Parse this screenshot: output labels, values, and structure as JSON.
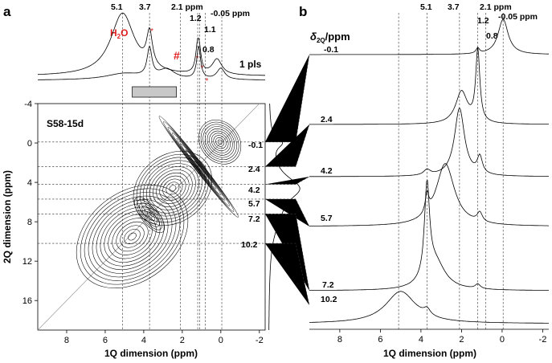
{
  "chart_data": [
    {
      "panel": "a",
      "type": "contour",
      "sample": "S58-15d",
      "xlabel": "1Q dimension (ppm)",
      "ylabel": "2Q dimension (ppm)",
      "xlim": [
        9.5,
        -2.3
      ],
      "ylim": [
        -4,
        19
      ],
      "xticks": [
        8,
        6,
        4,
        2,
        0,
        -2
      ],
      "yticks": [
        -4,
        0,
        4,
        8,
        12,
        16
      ],
      "peak_labels": [
        "5.1",
        "3.7",
        "2.1 ppm",
        "1.2",
        "1.1",
        "0.8",
        "-0.05 ppm"
      ],
      "peak_positions_ppm": [
        5.1,
        3.7,
        2.1,
        1.2,
        1.1,
        0.8,
        -0.05
      ],
      "projection_label": "1 pls",
      "water_label": "H2O",
      "hash_label": "#",
      "star_markers_ppm": [
        3.7,
        1.35,
        1.1,
        0.85
      ],
      "slice_labels": [
        "-0.1",
        "2.4",
        "4.2",
        "5.7",
        "7.2",
        "10.2"
      ],
      "slice_2q_ppm": [
        -0.1,
        2.4,
        4.2,
        5.7,
        7.2,
        10.2
      ],
      "diagonal_slope": 2,
      "box_range_ppm": [
        4.6,
        2.3
      ]
    },
    {
      "panel": "b",
      "type": "line",
      "xlabel": "1Q dimension (ppm)",
      "xlim": [
        9.5,
        -2.3
      ],
      "xticks": [
        8,
        6,
        4,
        2,
        0,
        -2
      ],
      "axis_title": "δ2Q/ppm",
      "peak_labels": [
        "5.1",
        "3.7",
        "2.1 ppm",
        "1.2",
        "0.8",
        "-0.05 ppm"
      ],
      "peak_positions_ppm": [
        5.1,
        3.7,
        2.1,
        1.2,
        0.8,
        -0.05
      ],
      "series": [
        {
          "name": "-0.1",
          "peaks": [
            {
              "x": -0.05,
              "h": 1.0,
              "w": 0.3
            },
            {
              "x": 1.2,
              "h": 0.15,
              "w": 0.1
            }
          ]
        },
        {
          "name": "2.4",
          "peaks": [
            {
              "x": 1.2,
              "h": 1.0,
              "w": 0.12
            },
            {
              "x": 2.0,
              "h": 0.45,
              "w": 0.35
            }
          ]
        },
        {
          "name": "4.2",
          "peaks": [
            {
              "x": 2.1,
              "h": 1.0,
              "w": 0.3
            },
            {
              "x": 1.1,
              "h": 0.25,
              "w": 0.15
            },
            {
              "x": 3.7,
              "h": 0.08,
              "w": 0.2
            }
          ]
        },
        {
          "name": "5.7",
          "peaks": [
            {
              "x": 2.8,
              "h": 1.0,
              "w": 0.55
            },
            {
              "x": 3.7,
              "h": 0.3,
              "w": 0.1
            },
            {
              "x": 1.1,
              "h": 0.15,
              "w": 0.15
            }
          ]
        },
        {
          "name": "7.2",
          "peaks": [
            {
              "x": 3.7,
              "h": 1.0,
              "w": 0.15
            },
            {
              "x": 3.3,
              "h": 0.3,
              "w": 0.6
            },
            {
              "x": 1.2,
              "h": 0.05,
              "w": 0.15
            }
          ]
        },
        {
          "name": "10.2",
          "peaks": [
            {
              "x": 5.0,
              "h": 1.0,
              "w": 0.9
            },
            {
              "x": 3.7,
              "h": 0.2,
              "w": 0.2
            }
          ]
        }
      ]
    }
  ],
  "labels": {
    "panel_a": "a",
    "panel_b": "b",
    "sample": "S58-15d",
    "xlabel_a": "1Q dimension (ppm)",
    "ylabel_a": "2Q dimension (ppm)",
    "xlabel_b": "1Q dimension (ppm)",
    "projection": "1 pls",
    "h2o_main": "H",
    "h2o_sub": "2",
    "h2o_end": "O",
    "hash": "#",
    "delta": "δ",
    "delta_sub": "2Q",
    "delta_unit": "/ppm",
    "top_a": [
      "5.1",
      "3.7",
      "2.1 ppm",
      "1.2",
      "-0.05 ppm"
    ],
    "top_a_extra": [
      "1.1",
      "0.8"
    ],
    "top_b": [
      "5.1",
      "3.7",
      "2.1 ppm",
      "1.2",
      "0.8",
      "-0.05 ppm"
    ],
    "xticks": [
      "8",
      "6",
      "4",
      "2",
      "0",
      "-2"
    ],
    "yticks": [
      "-4",
      "0",
      "4",
      "8",
      "12",
      "16"
    ],
    "slices_a": [
      "-0.1",
      "2.4",
      "4.2",
      "5.7",
      "7.2",
      "10.2"
    ],
    "slices_b": [
      "-0.1",
      "2.4",
      "4.2",
      "5.7",
      "7.2",
      "10.2"
    ]
  }
}
